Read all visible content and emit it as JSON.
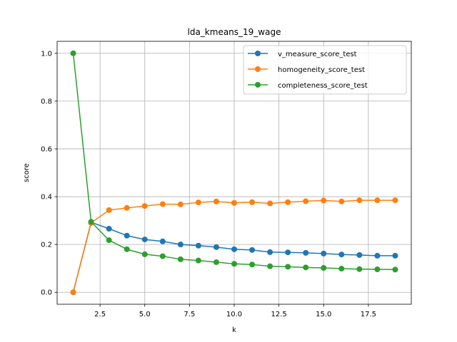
{
  "chart_data": {
    "type": "line",
    "title": "lda_kmeans_19_wage",
    "xlabel": "k",
    "ylabel": "score",
    "xlim": [
      0.1,
      19.9
    ],
    "ylim": [
      -0.05,
      1.05
    ],
    "xticks": [
      2.5,
      5.0,
      7.5,
      10.0,
      12.5,
      15.0,
      17.5
    ],
    "xtick_labels": [
      "2.5",
      "5.0",
      "7.5",
      "10.0",
      "12.5",
      "15.0",
      "17.5"
    ],
    "yticks": [
      0.0,
      0.2,
      0.4,
      0.6,
      0.8,
      1.0
    ],
    "ytick_labels": [
      "0.0",
      "0.2",
      "0.4",
      "0.6",
      "0.8",
      "1.0"
    ],
    "grid": true,
    "legend_position": "top-right",
    "x": [
      1,
      2,
      3,
      4,
      5,
      6,
      7,
      8,
      9,
      10,
      11,
      12,
      13,
      14,
      15,
      16,
      17,
      18,
      19
    ],
    "series": [
      {
        "name": "v_measure_score_test",
        "color": "#1f77b4",
        "values": [
          0.0,
          0.293,
          0.266,
          0.237,
          0.221,
          0.213,
          0.2,
          0.195,
          0.189,
          0.18,
          0.177,
          0.168,
          0.167,
          0.165,
          0.162,
          0.158,
          0.156,
          0.153,
          0.153
        ]
      },
      {
        "name": "homogeneity_score_test",
        "color": "#ff7f0e",
        "values": [
          0.0,
          0.29,
          0.344,
          0.353,
          0.361,
          0.369,
          0.368,
          0.376,
          0.38,
          0.374,
          0.377,
          0.372,
          0.377,
          0.381,
          0.384,
          0.38,
          0.385,
          0.385,
          0.385
        ]
      },
      {
        "name": "completeness_score_test",
        "color": "#2ca02c",
        "values": [
          1.0,
          0.295,
          0.218,
          0.18,
          0.159,
          0.151,
          0.138,
          0.133,
          0.126,
          0.119,
          0.116,
          0.109,
          0.107,
          0.104,
          0.102,
          0.099,
          0.097,
          0.096,
          0.095
        ]
      }
    ]
  }
}
